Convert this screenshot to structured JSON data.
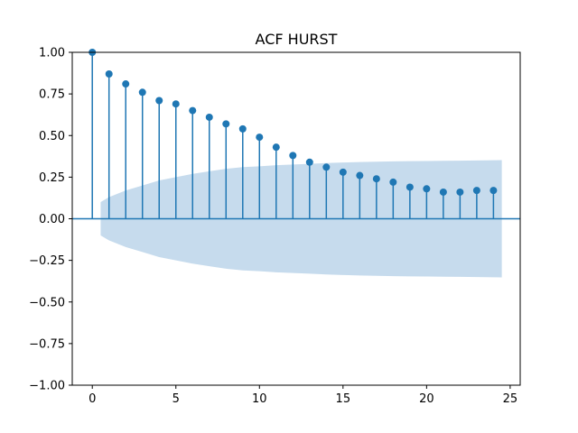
{
  "chart_data": {
    "type": "stem",
    "title": "ACF HURST",
    "xlabel": "",
    "ylabel": "",
    "xlim": [
      -1.2,
      25.6
    ],
    "ylim": [
      -1.0,
      1.0
    ],
    "xticks": [
      0,
      5,
      10,
      15,
      20,
      25
    ],
    "xtick_labels": [
      "0",
      "5",
      "10",
      "15",
      "20",
      "25"
    ],
    "yticks": [
      -1.0,
      -0.75,
      -0.5,
      -0.25,
      0.0,
      0.25,
      0.5,
      0.75,
      1.0
    ],
    "ytick_labels": [
      "−1.00",
      "−0.75",
      "−0.50",
      "−0.25",
      "0.00",
      "0.25",
      "0.50",
      "0.75",
      "1.00"
    ],
    "grid": false,
    "series": [
      {
        "lags": [
          0,
          1,
          2,
          3,
          4,
          5,
          6,
          7,
          8,
          9,
          10,
          11,
          12,
          13,
          14,
          15,
          16,
          17,
          18,
          19,
          20,
          21,
          22,
          23,
          24
        ],
        "values": [
          1.0,
          0.87,
          0.81,
          0.76,
          0.71,
          0.69,
          0.65,
          0.61,
          0.57,
          0.54,
          0.49,
          0.43,
          0.38,
          0.34,
          0.31,
          0.28,
          0.26,
          0.24,
          0.22,
          0.19,
          0.18,
          0.16,
          0.16,
          0.17,
          0.17
        ]
      }
    ],
    "confidence_band": {
      "lags": [
        0.5,
        1,
        2,
        3,
        4,
        5,
        6,
        7,
        8,
        9,
        10,
        11,
        12,
        13,
        14,
        15,
        16,
        17,
        18,
        19,
        20,
        21,
        22,
        23,
        24.5
      ],
      "upper": [
        0.1,
        0.13,
        0.17,
        0.2,
        0.23,
        0.25,
        0.27,
        0.285,
        0.3,
        0.31,
        0.315,
        0.322,
        0.326,
        0.33,
        0.335,
        0.338,
        0.341,
        0.343,
        0.345,
        0.346,
        0.347,
        0.348,
        0.349,
        0.35,
        0.352
      ]
    },
    "colors": {
      "stem": "#1f77b4",
      "marker": "#1f77b4",
      "band": "#c6dbed",
      "zero_line": "#1f77b4"
    }
  }
}
